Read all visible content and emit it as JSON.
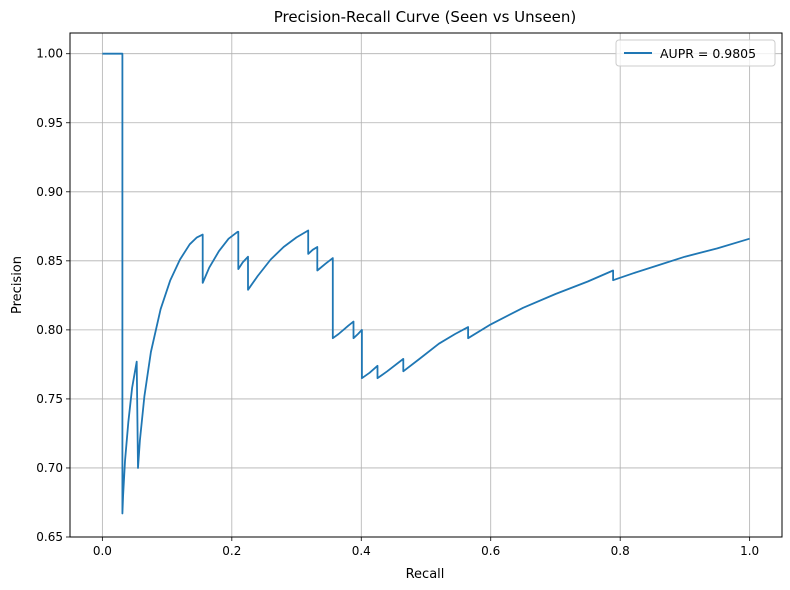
{
  "chart_data": {
    "type": "line",
    "title": "Precision-Recall Curve (Seen vs Unseen)",
    "xlabel": "Recall",
    "ylabel": "Precision",
    "xlim": [
      -0.05,
      1.05
    ],
    "ylim": [
      0.65,
      1.015
    ],
    "xticks": [
      0.0,
      0.2,
      0.4,
      0.6,
      0.8,
      1.0
    ],
    "xtick_labels": [
      "0.0",
      "0.2",
      "0.4",
      "0.6",
      "0.8",
      "1.0"
    ],
    "yticks": [
      0.65,
      0.7,
      0.75,
      0.8,
      0.85,
      0.9,
      0.95,
      1.0
    ],
    "ytick_labels": [
      "0.65",
      "0.70",
      "0.75",
      "0.80",
      "0.85",
      "0.90",
      "0.95",
      "1.00"
    ],
    "grid": true,
    "legend_position": "top-right",
    "series": [
      {
        "name": "AUPR = 0.9805",
        "color": "#1f77b4",
        "x": [
          0.0,
          0.031,
          0.031,
          0.032,
          0.035,
          0.04,
          0.046,
          0.053,
          0.055,
          0.055,
          0.058,
          0.065,
          0.075,
          0.09,
          0.105,
          0.12,
          0.135,
          0.146,
          0.155,
          0.155,
          0.165,
          0.18,
          0.195,
          0.209,
          0.21,
          0.21,
          0.217,
          0.225,
          0.225,
          0.24,
          0.26,
          0.28,
          0.3,
          0.318,
          0.318,
          0.325,
          0.332,
          0.332,
          0.345,
          0.356,
          0.356,
          0.365,
          0.38,
          0.388,
          0.388,
          0.395,
          0.401,
          0.401,
          0.413,
          0.425,
          0.425,
          0.44,
          0.465,
          0.465,
          0.49,
          0.52,
          0.545,
          0.565,
          0.565,
          0.6,
          0.65,
          0.7,
          0.75,
          0.789,
          0.789,
          0.82,
          0.86,
          0.9,
          0.95,
          1.0
        ],
        "y": [
          1.0,
          1.0,
          0.667,
          0.68,
          0.705,
          0.733,
          0.758,
          0.777,
          0.7,
          0.7,
          0.72,
          0.752,
          0.784,
          0.815,
          0.836,
          0.851,
          0.862,
          0.867,
          0.869,
          0.834,
          0.845,
          0.857,
          0.866,
          0.871,
          0.871,
          0.844,
          0.849,
          0.853,
          0.829,
          0.839,
          0.851,
          0.86,
          0.867,
          0.872,
          0.855,
          0.858,
          0.86,
          0.843,
          0.848,
          0.852,
          0.794,
          0.797,
          0.803,
          0.806,
          0.794,
          0.797,
          0.8,
          0.765,
          0.769,
          0.774,
          0.765,
          0.77,
          0.779,
          0.77,
          0.779,
          0.79,
          0.797,
          0.802,
          0.794,
          0.804,
          0.816,
          0.826,
          0.835,
          0.843,
          0.836,
          0.841,
          0.847,
          0.853,
          0.859,
          0.866
        ]
      }
    ]
  }
}
